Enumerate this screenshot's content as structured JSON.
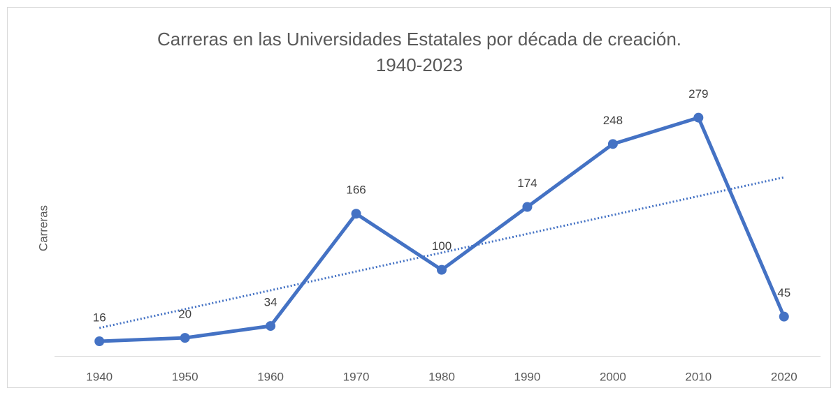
{
  "chart_data": {
    "type": "line",
    "title": [
      "Carreras en las Universidades Estatales por década de creación.",
      "1940-2023"
    ],
    "y_label": "Carreras",
    "categories": [
      "1940",
      "1950",
      "1960",
      "1970",
      "1980",
      "1990",
      "2000",
      "2010",
      "2020"
    ],
    "series": [
      {
        "name": "Carreras",
        "color": "#4472c4",
        "values": [
          16,
          20,
          34,
          166,
          100,
          174,
          248,
          279,
          45
        ]
      }
    ],
    "ylim": [
      0,
      300
    ],
    "trendline": "linear",
    "data_labels": true
  }
}
